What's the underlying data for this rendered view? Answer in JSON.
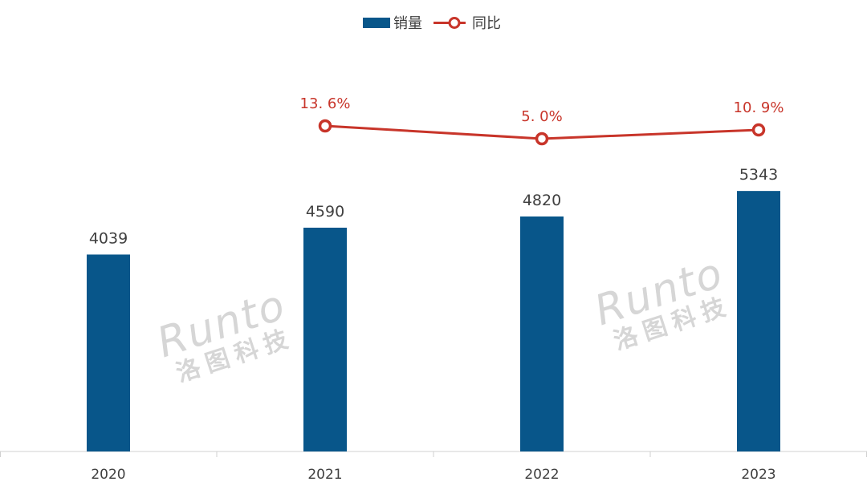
{
  "chart_data": {
    "type": "bar+line",
    "categories": [
      "2020",
      "2021",
      "2022",
      "2023"
    ],
    "series": [
      {
        "name": "销量",
        "type": "bar",
        "values": [
          4039,
          4590,
          4820,
          5343
        ],
        "labels": [
          "4039",
          "4590",
          "4820",
          "5343"
        ],
        "color": "#08568A"
      },
      {
        "name": "同比",
        "type": "line",
        "values": [
          null,
          13.6,
          5.0,
          10.9
        ],
        "labels": [
          "",
          "13. 6%",
          "5. 0%",
          "10. 9%"
        ],
        "color": "#C8352A"
      }
    ],
    "legend": "top-center",
    "grid": false
  },
  "watermark": {
    "brand": "Runto",
    "name": "洛图科技"
  }
}
